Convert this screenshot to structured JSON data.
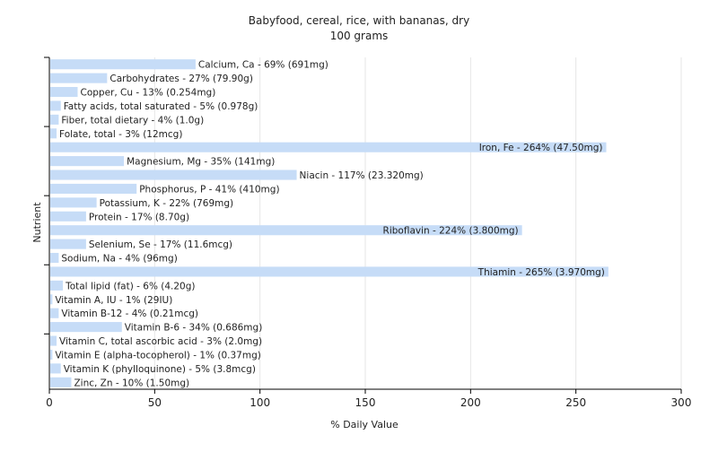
{
  "chart_data": {
    "type": "bar",
    "orientation": "horizontal",
    "title": "Babyfood, cereal, rice, with bananas, dry",
    "subtitle": "100 grams",
    "xlabel": "% Daily Value",
    "ylabel": "Nutrient",
    "xlim": [
      0,
      300
    ],
    "xticks": [
      "0",
      "50",
      "100",
      "150",
      "200",
      "250",
      "300"
    ],
    "grid": "vertical",
    "bar_color": "#c6dcf7",
    "categories": [
      "Calcium, Ca",
      "Carbohydrates",
      "Copper, Cu",
      "Fatty acids, total saturated",
      "Fiber, total dietary",
      "Folate, total",
      "Iron, Fe",
      "Magnesium, Mg",
      "Niacin",
      "Phosphorus, P",
      "Potassium, K",
      "Protein",
      "Riboflavin",
      "Selenium, Se",
      "Sodium, Na",
      "Thiamin",
      "Total lipid (fat)",
      "Vitamin A, IU",
      "Vitamin B-12",
      "Vitamin B-6",
      "Vitamin C, total ascorbic acid",
      "Vitamin E (alpha-tocopherol)",
      "Vitamin K (phylloquinone)",
      "Zinc, Zn"
    ],
    "values": [
      69,
      27,
      13,
      5,
      4,
      3,
      264,
      35,
      117,
      41,
      22,
      17,
      224,
      17,
      4,
      265,
      6,
      1,
      4,
      34,
      3,
      1,
      5,
      10
    ],
    "labels": [
      "Calcium, Ca - 69% (691mg)",
      "Carbohydrates - 27% (79.90g)",
      "Copper, Cu - 13% (0.254mg)",
      "Fatty acids, total saturated - 5% (0.978g)",
      "Fiber, total dietary - 4% (1.0g)",
      "Folate, total - 3% (12mcg)",
      "Iron, Fe - 264% (47.50mg)",
      "Magnesium, Mg - 35% (141mg)",
      "Niacin - 117% (23.320mg)",
      "Phosphorus, P - 41% (410mg)",
      "Potassium, K - 22% (769mg)",
      "Protein - 17% (8.70g)",
      "Riboflavin - 224% (3.800mg)",
      "Selenium, Se - 17% (11.6mcg)",
      "Sodium, Na - 4% (96mg)",
      "Thiamin - 265% (3.970mg)",
      "Total lipid (fat) - 6% (4.20g)",
      "Vitamin A, IU - 1% (29IU)",
      "Vitamin B-12 - 4% (0.21mcg)",
      "Vitamin B-6 - 34% (0.686mg)",
      "Vitamin C, total ascorbic acid - 3% (2.0mg)",
      "Vitamin E (alpha-tocopherol) - 1% (0.37mg)",
      "Vitamin K (phylloquinone) - 5% (3.8mcg)",
      "Zinc, Zn - 10% (1.50mg)"
    ]
  }
}
